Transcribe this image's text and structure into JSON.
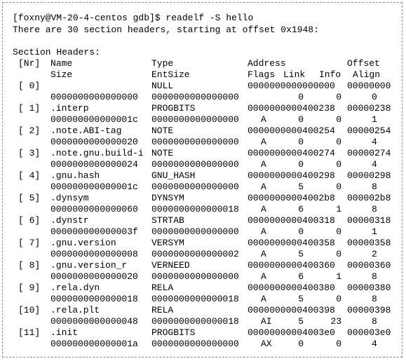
{
  "terminal": {
    "prompt": "[foxny@VM-20-4-centos gdb]$ readelf -S hello",
    "summary": "There are 30 section headers, starting at offset 0x1948:",
    "section_title": "Section Headers:"
  },
  "columns": {
    "nr": "[Nr]",
    "name": "Name",
    "type": "Type",
    "address": "Address",
    "offset": "Offset",
    "size": "Size",
    "entsize": "EntSize",
    "flags": "Flags",
    "link": "Link",
    "info": "Info",
    "align": "Align"
  },
  "sections": [
    {
      "nr": "[ 0]",
      "name": "",
      "type": "NULL",
      "address": "0000000000000000",
      "offset": "00000000",
      "size": "0000000000000000",
      "entsize": "0000000000000000",
      "flags": "",
      "link": "0",
      "info": "0",
      "align": "0"
    },
    {
      "nr": "[ 1]",
      "name": ".interp",
      "type": "PROGBITS",
      "address": "0000000000400238",
      "offset": "00000238",
      "size": "000000000000001c",
      "entsize": "0000000000000000",
      "flags": "A",
      "link": "0",
      "info": "0",
      "align": "1"
    },
    {
      "nr": "[ 2]",
      "name": ".note.ABI-tag",
      "type": "NOTE",
      "address": "0000000000400254",
      "offset": "00000254",
      "size": "0000000000000020",
      "entsize": "0000000000000000",
      "flags": "A",
      "link": "0",
      "info": "0",
      "align": "4"
    },
    {
      "nr": "[ 3]",
      "name": ".note.gnu.build-i",
      "type": "NOTE",
      "address": "0000000000400274",
      "offset": "00000274",
      "size": "0000000000000024",
      "entsize": "0000000000000000",
      "flags": "A",
      "link": "0",
      "info": "0",
      "align": "4"
    },
    {
      "nr": "[ 4]",
      "name": ".gnu.hash",
      "type": "GNU_HASH",
      "address": "0000000000400298",
      "offset": "00000298",
      "size": "000000000000001c",
      "entsize": "0000000000000000",
      "flags": "A",
      "link": "5",
      "info": "0",
      "align": "8"
    },
    {
      "nr": "[ 5]",
      "name": ".dynsym",
      "type": "DYNSYM",
      "address": "00000000004002b8",
      "offset": "000002b8",
      "size": "0000000000000060",
      "entsize": "0000000000000018",
      "flags": "A",
      "link": "6",
      "info": "1",
      "align": "8"
    },
    {
      "nr": "[ 6]",
      "name": ".dynstr",
      "type": "STRTAB",
      "address": "0000000000400318",
      "offset": "00000318",
      "size": "000000000000003f",
      "entsize": "0000000000000000",
      "flags": "A",
      "link": "0",
      "info": "0",
      "align": "1"
    },
    {
      "nr": "[ 7]",
      "name": ".gnu.version",
      "type": "VERSYM",
      "address": "0000000000400358",
      "offset": "00000358",
      "size": "0000000000000008",
      "entsize": "0000000000000002",
      "flags": "A",
      "link": "5",
      "info": "0",
      "align": "2"
    },
    {
      "nr": "[ 8]",
      "name": ".gnu.version_r",
      "type": "VERNEED",
      "address": "0000000000400360",
      "offset": "00000360",
      "size": "0000000000000020",
      "entsize": "0000000000000000",
      "flags": "A",
      "link": "6",
      "info": "1",
      "align": "8"
    },
    {
      "nr": "[ 9]",
      "name": ".rela.dyn",
      "type": "RELA",
      "address": "0000000000400380",
      "offset": "00000380",
      "size": "0000000000000018",
      "entsize": "0000000000000018",
      "flags": "A",
      "link": "5",
      "info": "0",
      "align": "8"
    },
    {
      "nr": "[10]",
      "name": ".rela.plt",
      "type": "RELA",
      "address": "0000000000400398",
      "offset": "00000398",
      "size": "0000000000000048",
      "entsize": "0000000000000018",
      "flags": "AI",
      "link": "5",
      "info": "23",
      "align": "8"
    },
    {
      "nr": "[11]",
      "name": ".init",
      "type": "PROGBITS",
      "address": "00000000004003e0",
      "offset": "000003e0",
      "size": "000000000000001a",
      "entsize": "0000000000000000",
      "flags": "AX",
      "link": "0",
      "info": "0",
      "align": "4"
    }
  ]
}
